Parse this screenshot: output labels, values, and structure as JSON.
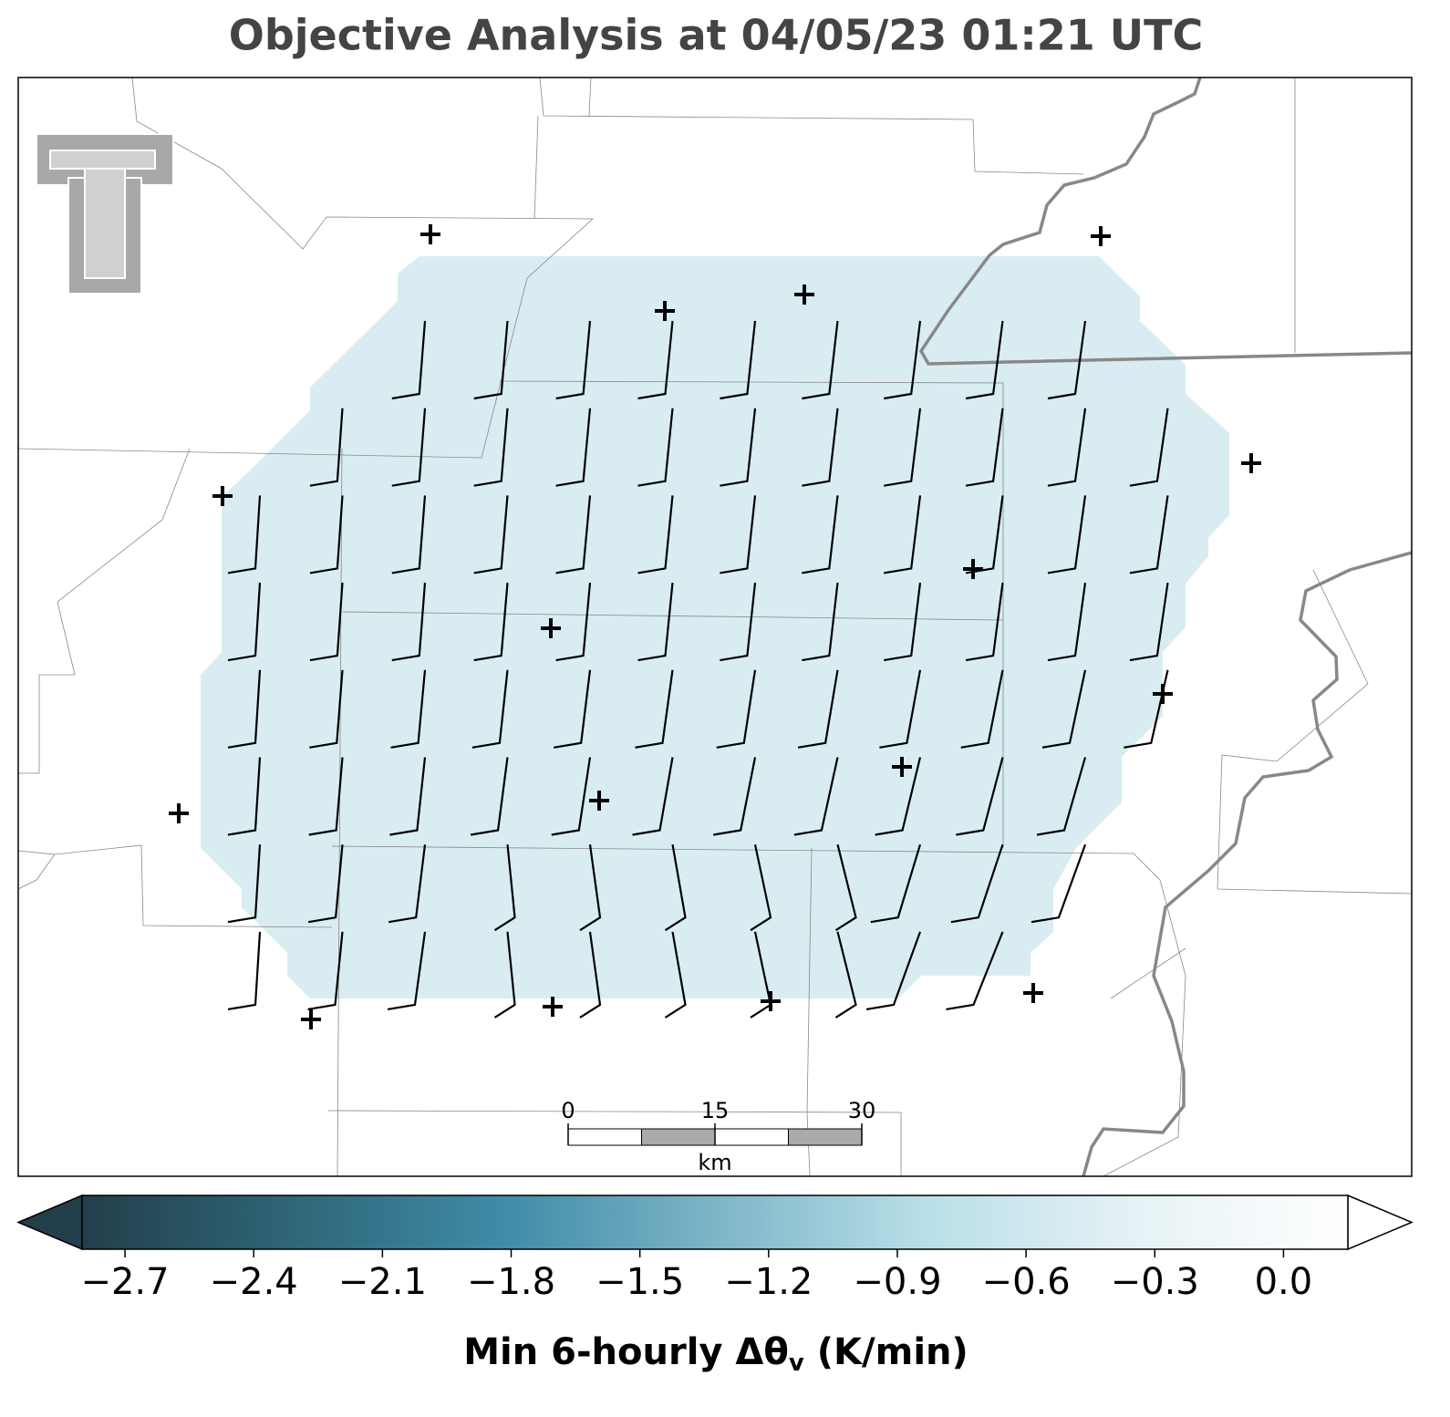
{
  "title": "Objective Analysis at 04/05/23 01:21 UTC",
  "map": {
    "scale_bar": {
      "ticks": [
        0,
        15,
        30
      ],
      "lim": [
        0,
        30
      ],
      "unit": "km"
    }
  },
  "colorbar": {
    "label": [
      "Min 6-hourly Δθ",
      "v",
      " (K/min)"
    ],
    "lim": [
      -2.8,
      0.15
    ],
    "ticks": [
      {
        "value": -2.7,
        "label": "−2.7"
      },
      {
        "value": -2.4,
        "label": "−2.4"
      },
      {
        "value": -2.1,
        "label": "−2.1"
      },
      {
        "value": -1.8,
        "label": "−1.8"
      },
      {
        "value": -1.5,
        "label": "−1.5"
      },
      {
        "value": -1.2,
        "label": "−1.2"
      },
      {
        "value": -0.9,
        "label": "−0.9"
      },
      {
        "value": -0.6,
        "label": "−0.6"
      },
      {
        "value": -0.3,
        "label": "−0.3"
      },
      {
        "value": 0,
        "label": "0.0"
      }
    ],
    "colors": [
      "#223f4b",
      "#2f6678",
      "#3f8ca7",
      "#7db5c8",
      "#b9dfe8",
      "#e6f2f5",
      "#ffffff"
    ]
  }
}
